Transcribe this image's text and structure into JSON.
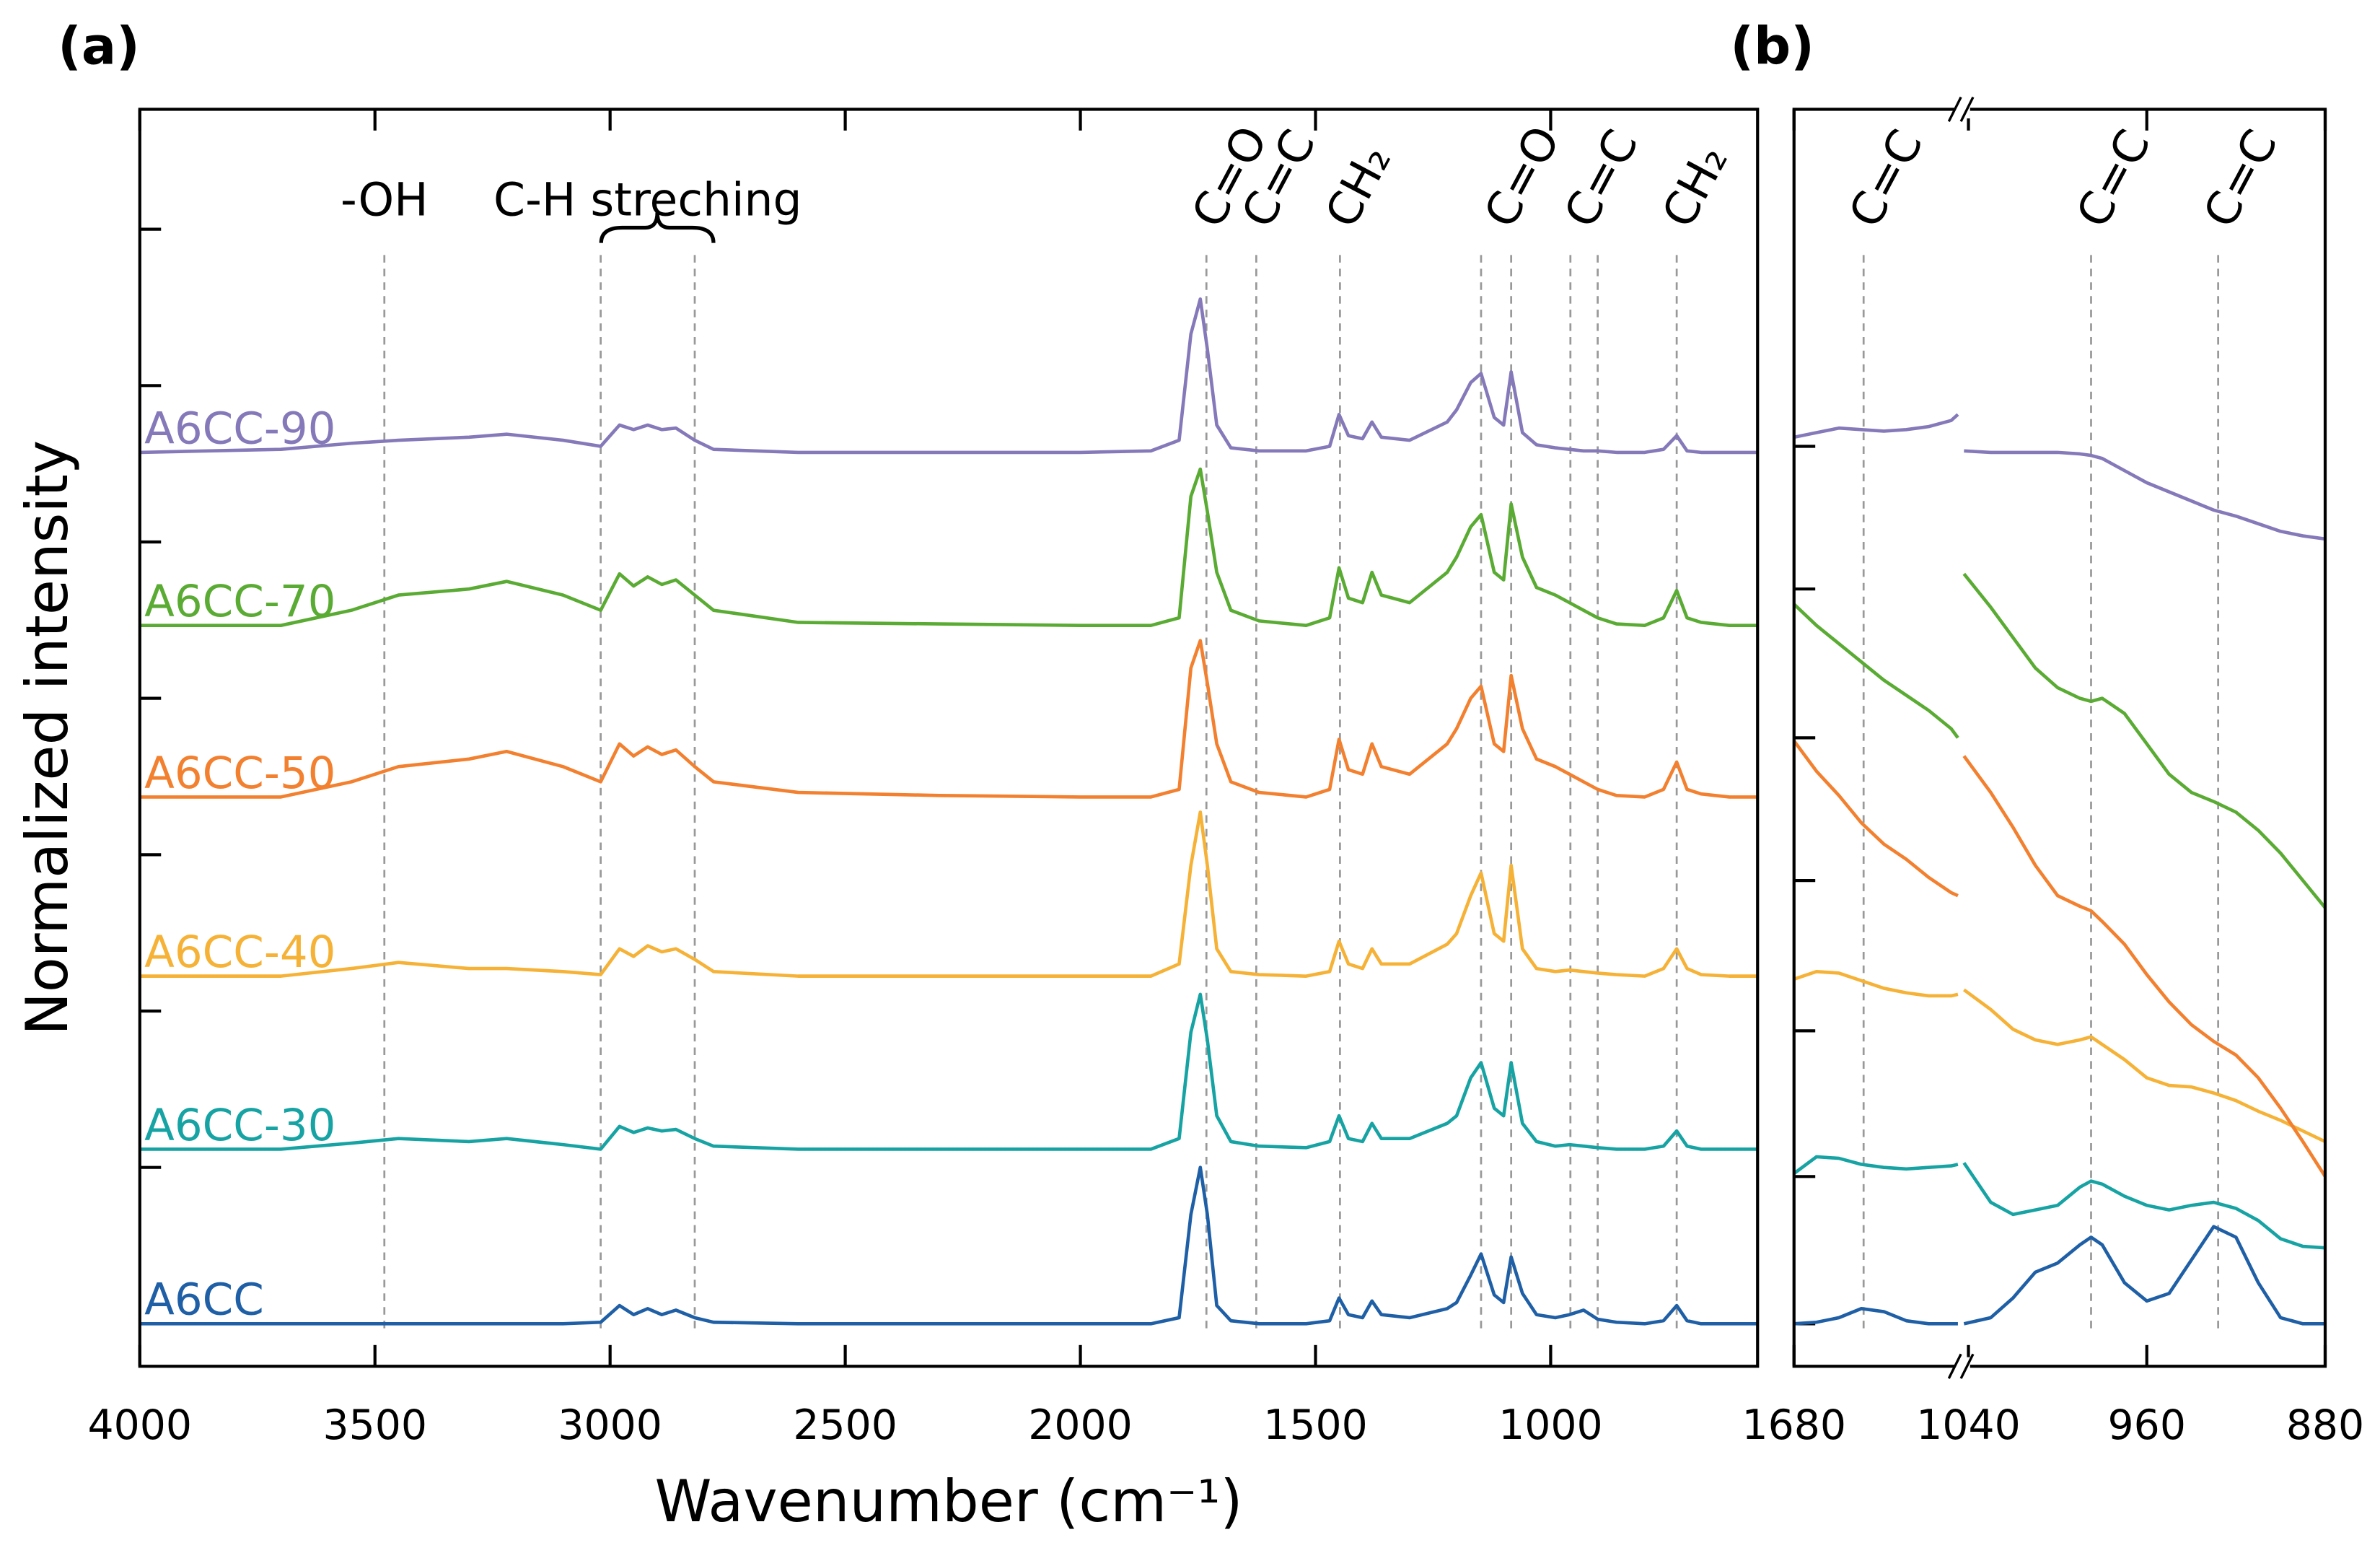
{
  "chart_data": [
    {
      "type": "line",
      "panel_label": "(a)",
      "xlabel": "Wavenumber (cm⁻¹)",
      "ylabel": "Normalized intensity",
      "xlim": [
        4000,
        560
      ],
      "xticks": [
        4000,
        3500,
        3000,
        2500,
        2000,
        1500,
        1000
      ],
      "ylim": [
        0,
        828
      ],
      "yticks": [
        28,
        131,
        234,
        337,
        440,
        543,
        646,
        749
      ],
      "annotations": [
        {
          "text": "-OH",
          "x": 3480
        },
        {
          "text": "C-H streching",
          "x": 2920
        }
      ],
      "peak_labels": [
        {
          "text": "C=O",
          "x": 1732
        },
        {
          "text": "C=C",
          "x": 1626
        },
        {
          "text": "CH₂",
          "x": 1448
        },
        {
          "text": "C=O",
          "x": 1110
        },
        {
          "text": "C=C",
          "x": 940
        },
        {
          "text": "CH₂",
          "x": 732
        }
      ],
      "reference_lines": [
        3480,
        3020,
        2820,
        1732,
        1626,
        1448,
        1148,
        1084,
        958,
        900,
        732
      ],
      "x": [
        4000,
        3700,
        3550,
        3450,
        3300,
        3220,
        3100,
        3020,
        2980,
        2950,
        2920,
        2890,
        2860,
        2820,
        2780,
        2600,
        2300,
        2000,
        1850,
        1790,
        1765,
        1745,
        1730,
        1710,
        1680,
        1620,
        1520,
        1470,
        1450,
        1430,
        1400,
        1380,
        1360,
        1300,
        1220,
        1200,
        1170,
        1148,
        1120,
        1100,
        1084,
        1060,
        1030,
        990,
        960,
        930,
        900,
        860,
        800,
        760,
        732,
        710,
        680,
        620,
        560
      ],
      "series": [
        {
          "name": "A6CC",
          "color": "#1f5fa6",
          "values": [
            28,
            28,
            28,
            28,
            28,
            28,
            28,
            29,
            40,
            34,
            38,
            34,
            37,
            32,
            29,
            28,
            28,
            28,
            28,
            32,
            100,
            131,
            100,
            40,
            30,
            28,
            28,
            30,
            45,
            34,
            32,
            43,
            34,
            32,
            38,
            42,
            60,
            74,
            47,
            42,
            72,
            48,
            34,
            32,
            34,
            37,
            31,
            29,
            28,
            30,
            40,
            30,
            28,
            28,
            28
          ]
        },
        {
          "name": "A6CC-30",
          "color": "#17a3a3",
          "values": [
            143,
            143,
            147,
            150,
            148,
            150,
            146,
            143,
            158,
            154,
            157,
            155,
            156,
            150,
            145,
            143,
            143,
            143,
            143,
            150,
            220,
            245,
            215,
            165,
            148,
            145,
            144,
            148,
            165,
            150,
            148,
            160,
            150,
            150,
            160,
            165,
            190,
            200,
            170,
            165,
            200,
            160,
            148,
            145,
            146,
            145,
            144,
            143,
            143,
            145,
            155,
            145,
            143,
            143,
            143
          ]
        },
        {
          "name": "A6CC-40",
          "color": "#f5b236",
          "values": [
            257,
            257,
            262,
            266,
            262,
            262,
            260,
            258,
            275,
            270,
            277,
            273,
            275,
            268,
            260,
            257,
            257,
            257,
            257,
            265,
            330,
            365,
            330,
            275,
            260,
            258,
            257,
            260,
            280,
            265,
            262,
            275,
            265,
            265,
            278,
            285,
            310,
            325,
            285,
            280,
            330,
            275,
            262,
            260,
            261,
            260,
            259,
            258,
            257,
            262,
            275,
            262,
            258,
            257,
            257
          ]
        },
        {
          "name": "A6CC-50",
          "color": "#f2802f",
          "values": [
            375,
            375,
            385,
            395,
            400,
            405,
            395,
            385,
            410,
            402,
            408,
            403,
            406,
            395,
            385,
            378,
            376,
            375,
            375,
            380,
            460,
            478,
            450,
            410,
            385,
            378,
            375,
            380,
            413,
            393,
            390,
            410,
            395,
            390,
            410,
            420,
            440,
            448,
            410,
            405,
            455,
            420,
            400,
            395,
            390,
            385,
            380,
            376,
            375,
            380,
            398,
            380,
            377,
            375,
            375
          ]
        },
        {
          "name": "A6CC-70",
          "color": "#5aab33",
          "values": [
            488,
            488,
            498,
            508,
            512,
            517,
            508,
            498,
            522,
            514,
            520,
            515,
            518,
            508,
            498,
            490,
            489,
            488,
            488,
            493,
            573,
            591,
            563,
            523,
            498,
            491,
            488,
            493,
            526,
            506,
            503,
            523,
            508,
            503,
            523,
            533,
            553,
            561,
            523,
            518,
            568,
            533,
            513,
            508,
            503,
            498,
            493,
            489,
            488,
            493,
            511,
            493,
            490,
            488,
            488
          ]
        },
        {
          "name": "A6CC-90",
          "color": "#8579b9",
          "values": [
            602,
            604,
            608,
            610,
            612,
            614,
            610,
            606,
            620,
            617,
            620,
            617,
            618,
            610,
            604,
            602,
            602,
            602,
            603,
            610,
            680,
            703,
            670,
            620,
            605,
            603,
            603,
            606,
            627,
            613,
            611,
            622,
            612,
            610,
            622,
            630,
            648,
            654,
            625,
            620,
            655,
            615,
            607,
            605,
            604,
            603,
            603,
            602,
            602,
            604,
            613,
            603,
            602,
            602,
            602
          ]
        }
      ]
    },
    {
      "type": "line",
      "panel_label": "(b)",
      "xlim": [
        1680,
        1607
      ],
      "xticks": [
        1680
      ],
      "ylim": [
        0,
        828
      ],
      "yticks": [
        28,
        125,
        221,
        320,
        414,
        512,
        606
      ],
      "peak_labels": [
        {
          "text": "C=C",
          "x": 1649
        }
      ],
      "reference_lines": [
        1649
      ],
      "x": [
        1680,
        1670,
        1660,
        1650,
        1640,
        1630,
        1620,
        1610,
        1607
      ],
      "series": [
        {
          "color": "#1f5fa6",
          "values": [
            28,
            29,
            32,
            38,
            36,
            30,
            28,
            28,
            28
          ]
        },
        {
          "color": "#17a3a3",
          "values": [
            127,
            138,
            137,
            133,
            131,
            130,
            131,
            132,
            133
          ]
        },
        {
          "color": "#f5b236",
          "values": [
            255,
            260,
            259,
            254,
            249,
            246,
            244,
            244,
            245
          ]
        },
        {
          "color": "#f2802f",
          "values": [
            412,
            392,
            376,
            358,
            344,
            334,
            322,
            312,
            310
          ]
        },
        {
          "color": "#5aab33",
          "values": [
            502,
            488,
            476,
            464,
            452,
            442,
            432,
            420,
            414
          ]
        },
        {
          "color": "#8579b9",
          "values": [
            612,
            615,
            618,
            617,
            616,
            617,
            619,
            623,
            627
          ]
        }
      ]
    },
    {
      "type": "line",
      "xlim": [
        1042,
        880
      ],
      "xticks": [
        1040,
        960,
        880
      ],
      "ylim": [
        0,
        828
      ],
      "peak_labels": [
        {
          "text": "C=C",
          "x": 985
        },
        {
          "text": "C=C",
          "x": 928
        }
      ],
      "reference_lines": [
        985,
        928
      ],
      "x": [
        1042,
        1030,
        1020,
        1010,
        1000,
        990,
        985,
        980,
        970,
        960,
        950,
        940,
        930,
        920,
        910,
        900,
        890,
        880
      ],
      "series": [
        {
          "color": "#1f5fa6",
          "values": [
            28,
            32,
            45,
            62,
            68,
            80,
            85,
            80,
            55,
            43,
            48,
            70,
            92,
            85,
            55,
            32,
            28,
            28
          ]
        },
        {
          "color": "#17a3a3",
          "values": [
            134,
            108,
            100,
            103,
            106,
            118,
            122,
            120,
            112,
            106,
            103,
            106,
            108,
            104,
            96,
            84,
            79,
            78
          ]
        },
        {
          "color": "#f5b236",
          "values": [
            248,
            235,
            222,
            215,
            212,
            215,
            217,
            212,
            202,
            190,
            185,
            184,
            180,
            175,
            168,
            162,
            155,
            148
          ]
        },
        {
          "color": "#f2802f",
          "values": [
            402,
            378,
            355,
            330,
            310,
            303,
            300,
            293,
            278,
            258,
            240,
            225,
            214,
            205,
            190,
            170,
            148,
            125
          ]
        },
        {
          "color": "#5aab33",
          "values": [
            522,
            500,
            480,
            460,
            447,
            440,
            438,
            440,
            430,
            410,
            390,
            378,
            372,
            365,
            353,
            338,
            320,
            302
          ]
        },
        {
          "color": "#8579b9",
          "values": [
            603,
            602,
            602,
            602,
            602,
            601,
            600,
            598,
            590,
            582,
            576,
            570,
            564,
            560,
            555,
            550,
            547,
            545
          ]
        }
      ]
    }
  ]
}
